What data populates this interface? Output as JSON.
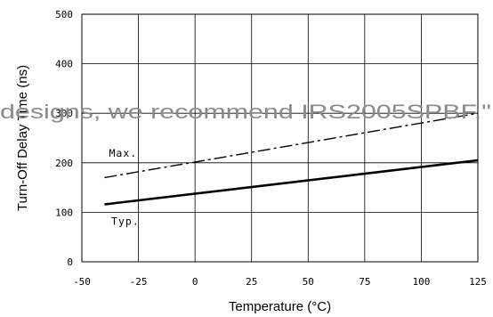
{
  "chart_data": {
    "type": "line",
    "xlabel": "Temperature (°C)",
    "ylabel": "Turn-Off Delay Time (ns)",
    "xlim": [
      -50,
      125
    ],
    "ylim": [
      0,
      500
    ],
    "x_ticks": [
      -50,
      -25,
      0,
      25,
      50,
      75,
      100,
      125
    ],
    "y_ticks": [
      0,
      100,
      200,
      300,
      400,
      500
    ],
    "x_tick_labels": [
      "-50",
      "-25",
      "0",
      "25",
      "50",
      "75",
      "100",
      "125"
    ],
    "y_tick_labels": [
      "0",
      "100",
      "200",
      "300",
      "400",
      "500"
    ],
    "grid": true,
    "series": [
      {
        "name": "Max.",
        "style": "dashed",
        "x": [
          -40,
          125
        ],
        "y": [
          170,
          300
        ]
      },
      {
        "name": "Typ.",
        "style": "solid",
        "x": [
          -40,
          125
        ],
        "y": [
          116,
          205
        ]
      }
    ],
    "annotations": [
      {
        "text": "Max.",
        "x": -38,
        "y": 212
      },
      {
        "text": "Typ.",
        "x": -37,
        "y": 75
      }
    ]
  },
  "watermark_text": "designs, we recommend IRS2005SPBF.\"",
  "colors": {
    "line": "#000000",
    "grid": "#000000",
    "watermark": "#8a8a8a"
  }
}
